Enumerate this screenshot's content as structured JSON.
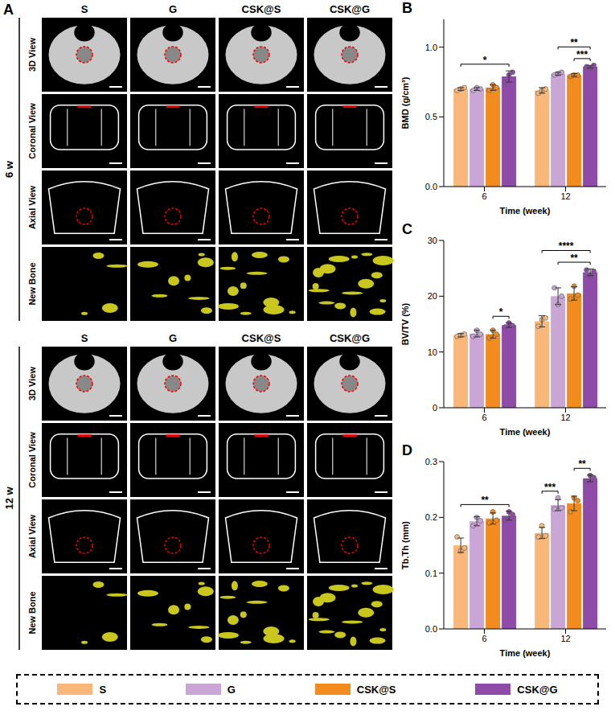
{
  "panel_a": {
    "label": "A",
    "columns": [
      "S",
      "G",
      "CSK@S",
      "CSK@G"
    ],
    "blocks": [
      {
        "label": "6 w",
        "rows": [
          "3D View",
          "Coronal View",
          "Axial View",
          "New Bone"
        ]
      },
      {
        "label": "12 w",
        "rows": [
          "3D View",
          "Coronal View",
          "Axial View",
          "New Bone"
        ]
      }
    ]
  },
  "chart_data": [
    {
      "type": "bar",
      "panel": "B",
      "x_label": "Time (week)",
      "y_label": "BMD (g/cm³)",
      "categories": [
        "6",
        "12"
      ],
      "ylim": [
        0,
        1.2
      ],
      "yticks": [
        {
          "value": 0,
          "label": "0.0"
        },
        0.5,
        {
          "value": 1,
          "label": "1.0"
        }
      ],
      "legend": "bottom",
      "series": [
        {
          "name": "S",
          "color": "#F9B77A",
          "values": [
            0.7,
            0.69
          ],
          "errors": [
            0.01,
            0.02
          ],
          "points": [
            [
              0.69,
              0.7,
              0.71
            ],
            [
              0.67,
              0.69,
              0.7
            ]
          ]
        },
        {
          "name": "G",
          "color": "#C9A6D6",
          "values": [
            0.7,
            0.81
          ],
          "errors": [
            0.01,
            0.01
          ],
          "points": [
            [
              0.69,
              0.71,
              0.7
            ],
            [
              0.8,
              0.81,
              0.82
            ]
          ]
        },
        {
          "name": "CSK@S",
          "color": "#F28C1E",
          "values": [
            0.71,
            0.8
          ],
          "errors": [
            0.02,
            0.01
          ],
          "points": [
            [
              0.69,
              0.73,
              0.71
            ],
            [
              0.79,
              0.8,
              0.8
            ]
          ]
        },
        {
          "name": "CSK@G",
          "color": "#8E4BA8",
          "values": [
            0.79,
            0.86
          ],
          "errors": [
            0.04,
            0.01
          ],
          "points": [
            [
              0.75,
              0.8,
              0.82
            ],
            [
              0.86,
              0.85,
              0.87
            ]
          ]
        }
      ],
      "significance": [
        {
          "category": "6",
          "from": "S",
          "to": "CSK@G",
          "label": "*"
        },
        {
          "category": "12",
          "from": "CSK@S",
          "to": "CSK@G",
          "label": "***"
        },
        {
          "category": "12",
          "from": "G",
          "to": "CSK@G",
          "label": "**"
        }
      ]
    },
    {
      "type": "bar",
      "panel": "C",
      "x_label": "Time (week)",
      "y_label": "BV/TV (%)",
      "categories": [
        "6",
        "12"
      ],
      "ylim": [
        0,
        30
      ],
      "yticks": [
        0,
        10,
        20,
        30
      ],
      "legend": "bottom",
      "series": [
        {
          "name": "S",
          "color": "#F9B77A",
          "values": [
            13.0,
            15.5
          ],
          "errors": [
            0.3,
            1.0
          ],
          "points": [
            [
              12.8,
              13.0,
              13.2
            ],
            [
              14.6,
              15.8,
              16.1
            ]
          ]
        },
        {
          "name": "G",
          "color": "#C9A6D6",
          "values": [
            13.3,
            20.0
          ],
          "errors": [
            0.6,
            1.5
          ],
          "points": [
            [
              12.8,
              13.9,
              13.2
            ],
            [
              21.5,
              18.5,
              20.0
            ]
          ]
        },
        {
          "name": "CSK@S",
          "color": "#F28C1E",
          "values": [
            13.2,
            20.5
          ],
          "errors": [
            0.7,
            1.2
          ],
          "points": [
            [
              12.5,
              13.9,
              13.2
            ],
            [
              19.5,
              21.8,
              20.2
            ]
          ]
        },
        {
          "name": "CSK@G",
          "color": "#8E4BA8",
          "values": [
            14.8,
            24.3
          ],
          "errors": [
            0.4,
            0.6
          ],
          "points": [
            [
              14.5,
              15.2,
              14.7
            ],
            [
              24.7,
              23.7,
              24.5
            ]
          ]
        }
      ],
      "significance": [
        {
          "category": "6",
          "from": "CSK@S",
          "to": "CSK@G",
          "label": "*"
        },
        {
          "category": "12",
          "from": "G",
          "to": "CSK@G",
          "label": "**"
        },
        {
          "category": "12",
          "from": "S",
          "to": "CSK@G",
          "label": "****"
        }
      ]
    },
    {
      "type": "bar",
      "panel": "D",
      "x_label": "Time (week)",
      "y_label": "Tb.Th (mm)",
      "categories": [
        "6",
        "12"
      ],
      "ylim": [
        0,
        0.3
      ],
      "yticks": [
        {
          "value": 0,
          "label": "0.0"
        },
        0.1,
        0.2,
        0.3
      ],
      "legend": "bottom",
      "series": [
        {
          "name": "S",
          "color": "#F9B77A",
          "values": [
            0.15,
            0.172
          ],
          "errors": [
            0.013,
            0.01
          ],
          "points": [
            [
              0.165,
              0.14,
              0.145
            ],
            [
              0.165,
              0.185,
              0.167
            ]
          ]
        },
        {
          "name": "G",
          "color": "#C9A6D6",
          "values": [
            0.193,
            0.222
          ],
          "errors": [
            0.008,
            0.01
          ],
          "points": [
            [
              0.185,
              0.2,
              0.194
            ],
            [
              0.215,
              0.235,
              0.217
            ]
          ]
        },
        {
          "name": "CSK@S",
          "color": "#F28C1E",
          "values": [
            0.198,
            0.225
          ],
          "errors": [
            0.01,
            0.013
          ],
          "points": [
            [
              0.19,
              0.21,
              0.195
            ],
            [
              0.21,
              0.235,
              0.23
            ]
          ]
        },
        {
          "name": "CSK@G",
          "color": "#8E4BA8",
          "values": [
            0.203,
            0.27
          ],
          "errors": [
            0.008,
            0.006
          ],
          "points": [
            [
              0.195,
              0.21,
              0.205
            ],
            [
              0.265,
              0.275,
              0.271
            ]
          ]
        }
      ],
      "significance": [
        {
          "category": "6",
          "from": "S",
          "to": "CSK@G",
          "label": "**"
        },
        {
          "category": "12",
          "from": "S",
          "to": "G",
          "label": "***"
        },
        {
          "category": "12",
          "from": "CSK@S",
          "to": "CSK@G",
          "label": "**"
        }
      ]
    }
  ]
}
